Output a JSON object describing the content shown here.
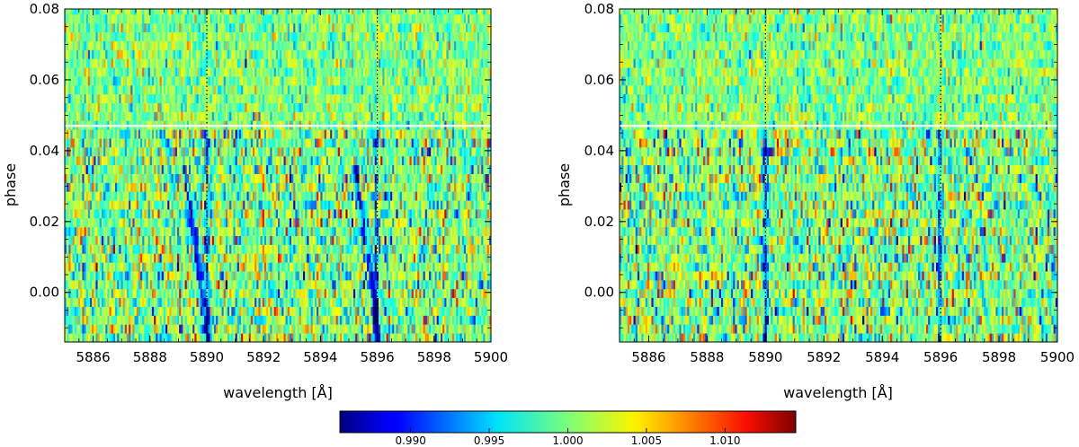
{
  "chart_data": {
    "type": "heatmap",
    "colormap": "jet",
    "panels": [
      {
        "name": "left",
        "xlabel": "wavelength [Å]",
        "ylabel": "phase",
        "xlim": [
          5885,
          5900
        ],
        "ylim": [
          -0.014,
          0.08
        ],
        "xticks": [
          5886,
          5888,
          5890,
          5892,
          5894,
          5896,
          5898,
          5900
        ],
        "xtick_labels": [
          "5886",
          "5888",
          "5890",
          "5892",
          "5894",
          "5896",
          "5898",
          "5900"
        ],
        "yticks": [
          0.0,
          0.02,
          0.04,
          0.06,
          0.08
        ],
        "ytick_labels": [
          "0.00",
          "0.02",
          "0.04",
          "0.06",
          "0.08"
        ],
        "marker_lines_x": [
          5890.0,
          5896.0
        ],
        "hline_y": 0.047,
        "features": [
          {
            "kind": "absorption",
            "x_at_ymin": 5890.1,
            "x_at_ymax": 5889.2,
            "y_range": [
              -0.014,
              0.036
            ]
          },
          {
            "kind": "absorption",
            "x_at_ymin": 5896.1,
            "x_at_ymax": 5895.2,
            "y_range": [
              -0.014,
              0.036
            ]
          },
          {
            "kind": "stellar",
            "x": 5890.0,
            "y_range": [
              -0.014,
              0.047
            ]
          },
          {
            "kind": "stellar",
            "x": 5895.95,
            "y_range": [
              -0.014,
              0.047
            ]
          }
        ]
      },
      {
        "name": "right",
        "xlabel": "wavelength [Å]",
        "ylabel": "phase",
        "xlim": [
          5885,
          5900
        ],
        "ylim": [
          -0.014,
          0.08
        ],
        "xticks": [
          5886,
          5888,
          5890,
          5892,
          5894,
          5896,
          5898,
          5900
        ],
        "xtick_labels": [
          "5886",
          "5888",
          "5890",
          "5892",
          "5894",
          "5896",
          "5898",
          "5900"
        ],
        "yticks": [
          0.0,
          0.02,
          0.04,
          0.06,
          0.08
        ],
        "ytick_labels": [
          "0.00",
          "0.02",
          "0.04",
          "0.06",
          "0.08"
        ],
        "marker_lines_x": [
          5890.0,
          5896.0
        ],
        "hline_y": 0.047,
        "features": [
          {
            "kind": "stellar",
            "x": 5890.0,
            "y_range": [
              -0.014,
              0.047
            ]
          },
          {
            "kind": "stellar",
            "x": 5895.95,
            "y_range": [
              -0.014,
              0.047
            ]
          }
        ]
      }
    ],
    "colorbar": {
      "range": [
        0.9855,
        1.0145
      ],
      "ticks": [
        0.99,
        0.995,
        1.0,
        1.005,
        1.01
      ],
      "tick_labels": [
        "0.990",
        "0.995",
        "1.000",
        "1.005",
        "1.010"
      ]
    }
  }
}
